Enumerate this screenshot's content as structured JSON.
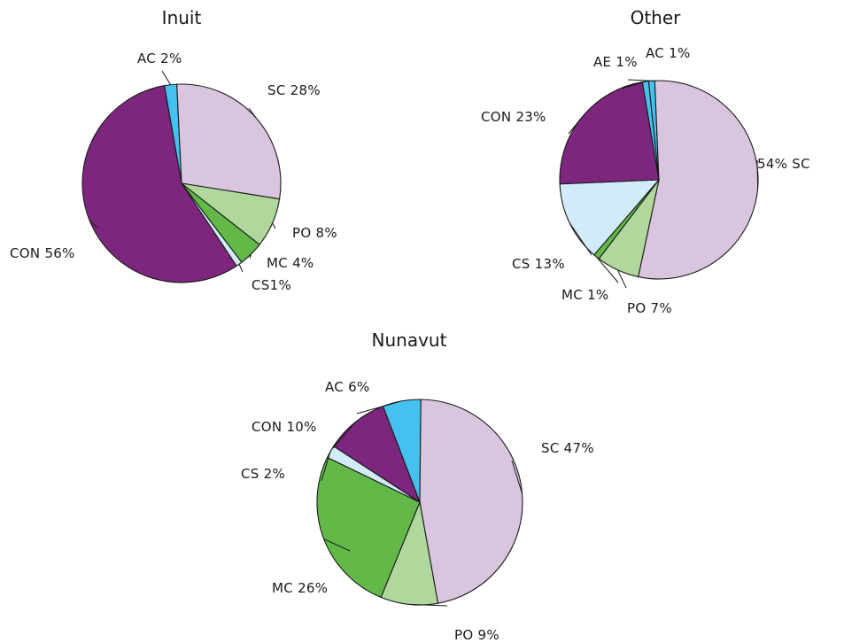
{
  "colors": {
    "SC": "#dac5df",
    "PO": "#b0d89c",
    "MC": "#62b947",
    "CS": "#d2ebf8",
    "CON": "#7d267d",
    "AC": "#45c1ef",
    "AE": "#45c1ef"
  },
  "chart_data": [
    {
      "type": "pie",
      "title": "Inuit",
      "slices": [
        {
          "key": "AC",
          "value": 2,
          "label": "AC 2%"
        },
        {
          "key": "SC",
          "value": 28,
          "label": "SC 28%"
        },
        {
          "key": "PO",
          "value": 8,
          "label": "PO 8%"
        },
        {
          "key": "MC",
          "value": 4,
          "label": "MC 4%"
        },
        {
          "key": "CS",
          "value": 1,
          "label": "CS1%"
        },
        {
          "key": "CON",
          "value": 56,
          "label": "CON 56%"
        }
      ]
    },
    {
      "type": "pie",
      "title": "Other",
      "slices": [
        {
          "key": "AC",
          "value": 1,
          "label": "AC 1%"
        },
        {
          "key": "SC",
          "value": 54,
          "label": "54% SC"
        },
        {
          "key": "PO",
          "value": 7,
          "label": "PO 7%"
        },
        {
          "key": "MC",
          "value": 1,
          "label": "MC 1%"
        },
        {
          "key": "CS",
          "value": 13,
          "label": "CS 13%"
        },
        {
          "key": "CON",
          "value": 23,
          "label": "CON 23%"
        },
        {
          "key": "AE",
          "value": 1,
          "label": "AE 1%"
        }
      ]
    },
    {
      "type": "pie",
      "title": "Nunavut",
      "slices": [
        {
          "key": "AC",
          "value": 6,
          "label": "AC 6%"
        },
        {
          "key": "SC",
          "value": 47,
          "label": "SC 47%"
        },
        {
          "key": "PO",
          "value": 9,
          "label": "PO 9%"
        },
        {
          "key": "MC",
          "value": 26,
          "label": "MC 26%"
        },
        {
          "key": "CS",
          "value": 2,
          "label": "CS 2%"
        },
        {
          "key": "CON",
          "value": 10,
          "label": "CON 10%"
        }
      ]
    }
  ]
}
